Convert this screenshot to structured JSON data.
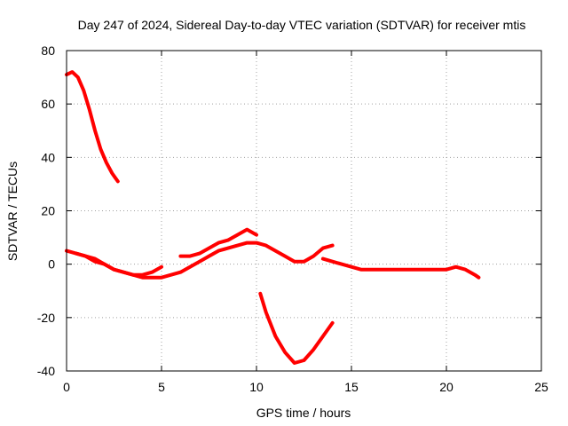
{
  "chart_data": {
    "type": "line",
    "title": "Day 247 of 2024, Sidereal Day-to-day VTEC variation (SDTVAR) for receiver mtis",
    "xlabel": "GPS time / hours",
    "ylabel": "SDTVAR / TECUs",
    "xlim": [
      0,
      25
    ],
    "ylim": [
      -40,
      80
    ],
    "xticks": [
      0,
      5,
      10,
      15,
      20,
      25
    ],
    "yticks": [
      -40,
      -20,
      0,
      20,
      40,
      60,
      80
    ],
    "grid": true,
    "color": "#ff0000",
    "series": [
      {
        "name": "segment-1",
        "x": [
          0.0,
          0.3,
          0.6,
          0.9,
          1.2,
          1.5,
          1.8,
          2.1,
          2.4,
          2.7
        ],
        "y": [
          71,
          72,
          70,
          65,
          58,
          50,
          43,
          38,
          34,
          31
        ]
      },
      {
        "name": "segment-2",
        "x": [
          0.0,
          0.5,
          1.0,
          1.5,
          2.0,
          2.5,
          3.0,
          3.5,
          4.0,
          4.5,
          5.0
        ],
        "y": [
          5,
          4,
          3,
          1,
          0,
          -2,
          -3,
          -4,
          -4,
          -3,
          -1
        ]
      },
      {
        "name": "segment-3",
        "x": [
          0.5,
          1.0,
          1.5,
          2.0,
          2.5,
          3.0,
          3.5,
          4.0,
          4.5,
          5.0,
          5.5,
          6.0,
          6.5,
          7.0,
          7.5,
          8.0,
          8.5,
          9.0,
          9.5,
          10.0,
          10.5,
          11.0,
          11.5,
          12.0,
          12.5,
          13.0,
          13.5,
          14.0
        ],
        "y": [
          4,
          3,
          2,
          0,
          -2,
          -3,
          -4,
          -5,
          -5,
          -5,
          -4,
          -3,
          -1,
          1,
          3,
          5,
          6,
          7,
          8,
          8,
          7,
          5,
          3,
          1,
          1,
          3,
          6,
          7
        ]
      },
      {
        "name": "segment-4",
        "x": [
          6.0,
          6.5,
          7.0,
          7.5,
          8.0,
          8.5,
          9.0,
          9.5,
          10.0
        ],
        "y": [
          3,
          3,
          4,
          6,
          8,
          9,
          11,
          13,
          11
        ]
      },
      {
        "name": "segment-5",
        "x": [
          10.2,
          10.5,
          11.0,
          11.5,
          12.0,
          12.5,
          13.0,
          13.5,
          14.0
        ],
        "y": [
          -11,
          -18,
          -27,
          -33,
          -37,
          -36,
          -32,
          -27,
          -22
        ]
      },
      {
        "name": "segment-6",
        "x": [
          13.5,
          14.0,
          14.5,
          15.0,
          15.5,
          16.0,
          17.0,
          18.0,
          19.0,
          20.0,
          20.5,
          21.0,
          21.5,
          21.7
        ],
        "y": [
          2,
          1,
          0,
          -1,
          -2,
          -2,
          -2,
          -2,
          -2,
          -2,
          -1,
          -2,
          -4,
          -5
        ]
      }
    ]
  }
}
